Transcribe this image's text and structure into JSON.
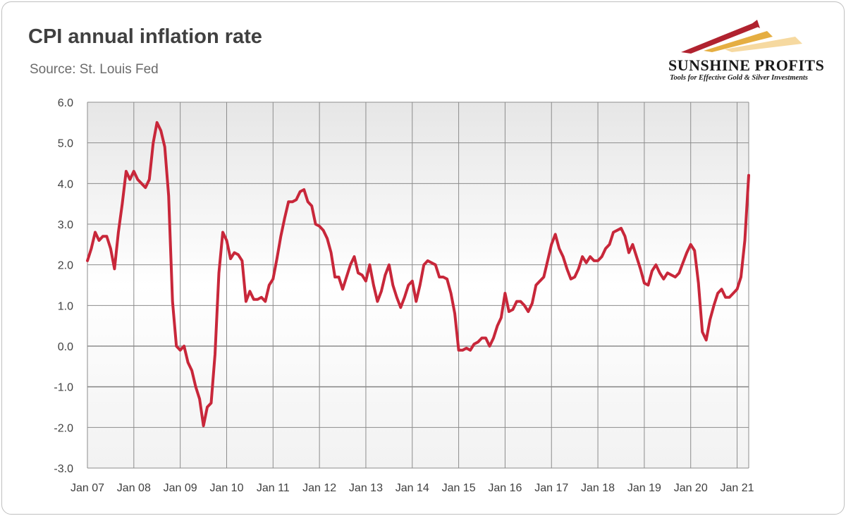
{
  "header": {
    "title": "CPI annual inflation rate",
    "subtitle": "Source: St. Louis Fed"
  },
  "logo": {
    "name": "SUNSHINE PROFITS",
    "tagline": "Tools for Effective Gold & Silver Investments"
  },
  "colors": {
    "line": "#c8273a",
    "grid": "#8c8c8c",
    "zero_line": "#8c8c8c",
    "text": "#404040",
    "logo_gold": "#e0a020",
    "logo_red": "#b0222f"
  },
  "chart_data": {
    "type": "line",
    "title": "CPI annual inflation rate",
    "xlabel": "",
    "ylabel": "",
    "ylim": [
      -3.0,
      6.0
    ],
    "y_ticks": [
      "6.0",
      "5.0",
      "4.0",
      "3.0",
      "2.0",
      "1.0",
      "0.0",
      "-1.0",
      "-2.0",
      "-3.0"
    ],
    "x_tick_labels": [
      "Jan 07",
      "Jan 08",
      "Jan 09",
      "Jan 10",
      "Jan 11",
      "Jan 12",
      "Jan 13",
      "Jan 14",
      "Jan 15",
      "Jan 16",
      "Jan 17",
      "Jan 18",
      "Jan 19",
      "Jan 20",
      "Jan 21"
    ],
    "x_range_months": [
      0,
      171
    ],
    "grid": true,
    "series": [
      {
        "name": "CPI annual inflation rate (%)",
        "start": "Jan 07",
        "frequency": "monthly",
        "values": [
          2.1,
          2.4,
          2.8,
          2.6,
          2.7,
          2.7,
          2.4,
          1.9,
          2.8,
          3.5,
          4.3,
          4.1,
          4.3,
          4.1,
          4.0,
          3.9,
          4.1,
          5.0,
          5.5,
          5.3,
          4.9,
          3.7,
          1.1,
          0.0,
          -0.1,
          0.0,
          -0.4,
          -0.6,
          -1.0,
          -1.3,
          -1.96,
          -1.5,
          -1.4,
          -0.2,
          1.8,
          2.8,
          2.6,
          2.15,
          2.3,
          2.25,
          2.1,
          1.1,
          1.35,
          1.15,
          1.15,
          1.2,
          1.1,
          1.5,
          1.65,
          2.15,
          2.7,
          3.15,
          3.55,
          3.55,
          3.6,
          3.8,
          3.85,
          3.55,
          3.45,
          3.0,
          2.95,
          2.85,
          2.65,
          2.3,
          1.7,
          1.7,
          1.4,
          1.7,
          2.0,
          2.2,
          1.8,
          1.75,
          1.6,
          2.0,
          1.5,
          1.1,
          1.35,
          1.75,
          2.0,
          1.5,
          1.2,
          0.95,
          1.2,
          1.5,
          1.6,
          1.1,
          1.5,
          2.0,
          2.1,
          2.05,
          2.0,
          1.7,
          1.7,
          1.65,
          1.3,
          0.8,
          -0.1,
          -0.1,
          -0.05,
          -0.1,
          0.05,
          0.1,
          0.2,
          0.2,
          0.0,
          0.2,
          0.5,
          0.7,
          1.3,
          0.85,
          0.9,
          1.1,
          1.1,
          1.0,
          0.85,
          1.05,
          1.5,
          1.6,
          1.7,
          2.1,
          2.5,
          2.75,
          2.4,
          2.2,
          1.9,
          1.65,
          1.7,
          1.9,
          2.2,
          2.05,
          2.2,
          2.1,
          2.1,
          2.2,
          2.4,
          2.5,
          2.8,
          2.85,
          2.9,
          2.7,
          2.3,
          2.5,
          2.2,
          1.9,
          1.55,
          1.5,
          1.85,
          2.0,
          1.8,
          1.65,
          1.8,
          1.75,
          1.7,
          1.8,
          2.05,
          2.3,
          2.5,
          2.35,
          1.55,
          0.35,
          0.15,
          0.65,
          1.0,
          1.3,
          1.4,
          1.2,
          1.2,
          1.3,
          1.4,
          1.7,
          2.6,
          4.2
        ]
      }
    ]
  }
}
